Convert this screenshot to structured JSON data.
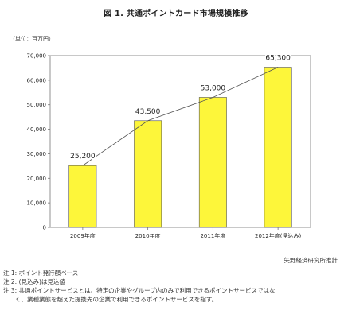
{
  "chart_data": {
    "type": "bar",
    "title": "図 1. 共通ポイントカード市場規模推移",
    "unit_label": "（単位：百万円）",
    "categories": [
      "2009年度",
      "2010年度",
      "2011年度",
      "2012年度(見込み)"
    ],
    "values": [
      25200,
      43500,
      53000,
      65300
    ],
    "value_labels": [
      "25,200",
      "43,500",
      "53,000",
      "65,300"
    ],
    "ylim": [
      0,
      70000
    ],
    "yticks": [
      0,
      10000,
      20000,
      30000,
      40000,
      50000,
      60000,
      70000
    ],
    "ytick_labels": [
      "0",
      "10,000",
      "20,000",
      "30,000",
      "40,000",
      "50,000",
      "60,000",
      "70,000"
    ],
    "grid": false,
    "legend": "none",
    "trend_line": true,
    "bar_color": "#fdf63a",
    "bar_edge_color": "#555555",
    "line_color": "#555555"
  },
  "source": "矢野経済研究所推計",
  "notes": [
    "注 1: ポイント発行額ベース",
    "注 2: (見込み)は見込値",
    "注 3: 共通ポイントサービスとは、特定の企業やグループ内のみで利用できるポイントサービスではな",
    "　　く、業種業態を超えた提携先の企業で利用できるポイントサービスを指す。"
  ]
}
